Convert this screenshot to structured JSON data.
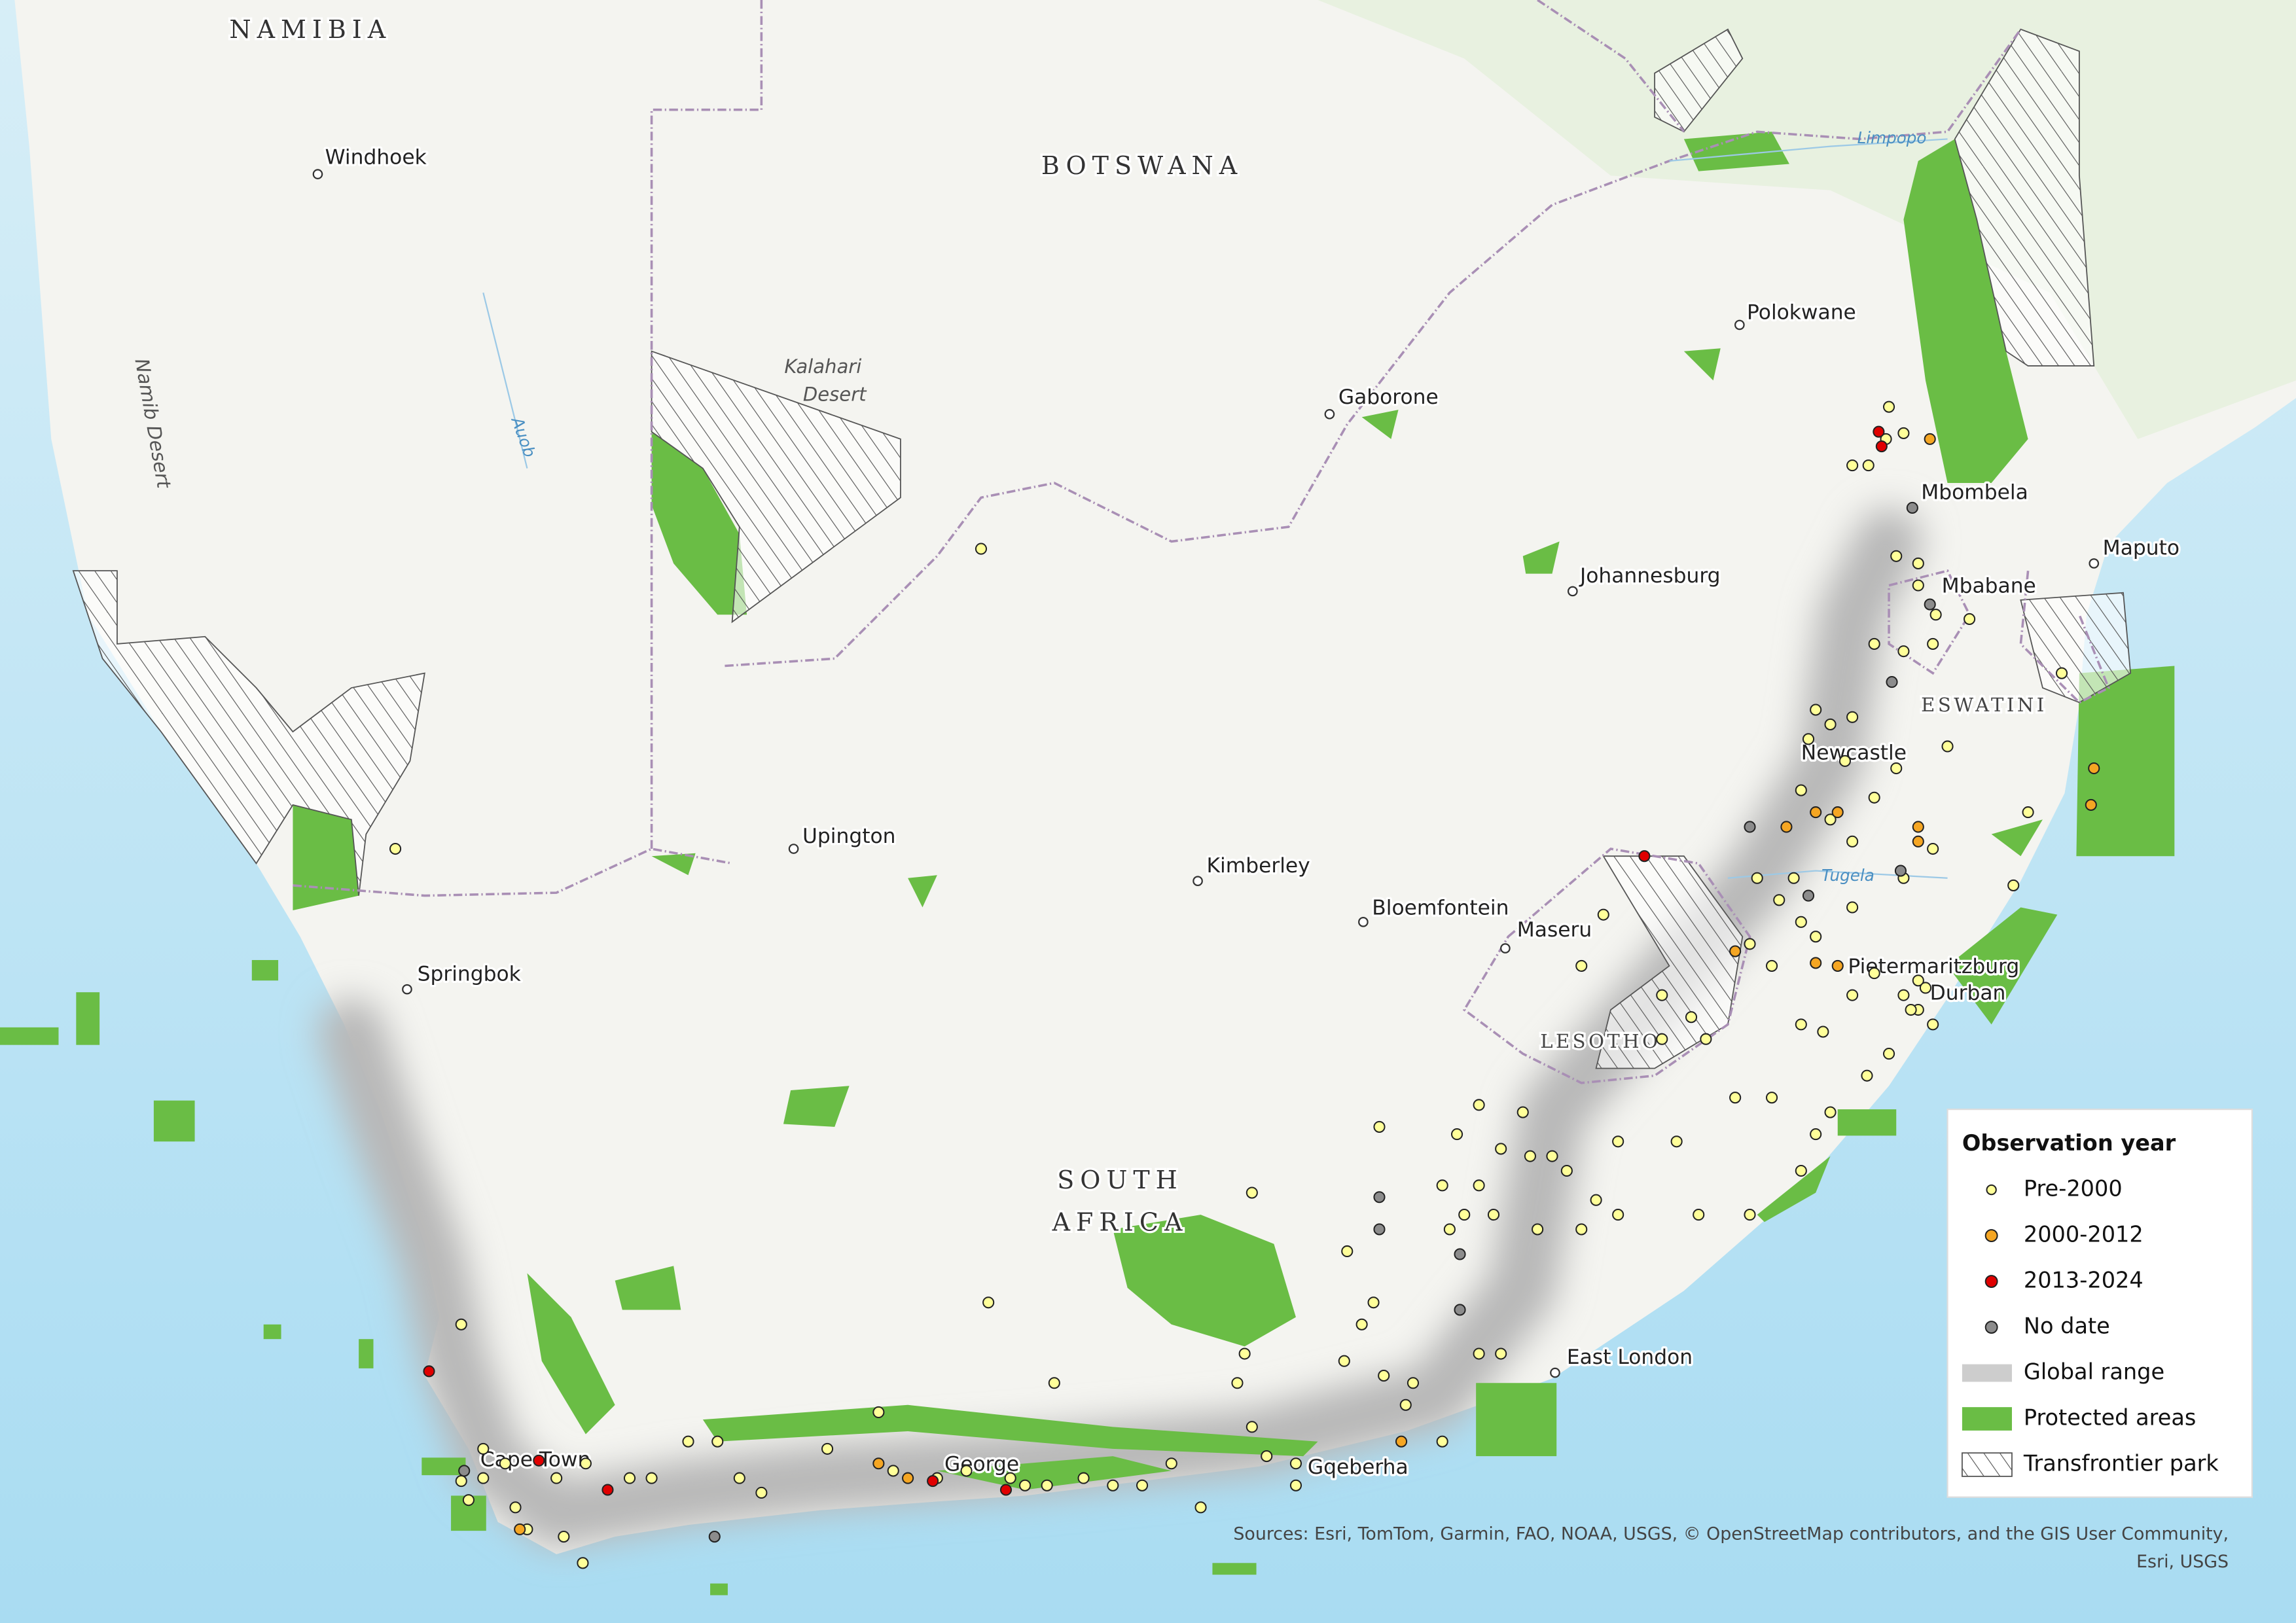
{
  "map": {
    "countries": [
      "NAMIBIA",
      "BOTSWANA",
      "SOUTH",
      "AFRICA",
      "LESOTHO",
      "ESWATINI"
    ],
    "cities": [
      "Windhoek",
      "Gaborone",
      "Polokwane",
      "Johannesburg",
      "Mbombela",
      "Maputo",
      "Mbabane",
      "Newcastle",
      "Upington",
      "Kimberley",
      "Bloemfontein",
      "Maseru",
      "Pietermaritzburg",
      "Durban",
      "Springbok",
      "East London",
      "Cape Town",
      "George",
      "Gqeberha"
    ],
    "features": [
      "Kalahari",
      "Desert",
      "Namib Desert",
      "Auob",
      "Limpopo",
      "Tugela"
    ]
  },
  "legend": {
    "title": "Observation year",
    "items": [
      {
        "label": "Pre-2000",
        "color": "#ffff99"
      },
      {
        "label": "2000-2012",
        "color": "#f5a623"
      },
      {
        "label": "2013-2024",
        "color": "#e00000"
      },
      {
        "label": "No date",
        "color": "#8c8c8c"
      },
      {
        "label": "Global range",
        "color": "#b8b8b8"
      },
      {
        "label": "Protected areas",
        "color": "#6abd45"
      },
      {
        "label": "Transfrontier park",
        "color": "#555555"
      }
    ]
  },
  "credits": [
    "Sources: Esri, TomTom, Garmin, FAO, NOAA, USGS, © OpenStreetMap contributors, and the GIS User Community,",
    "Esri, USGS"
  ]
}
